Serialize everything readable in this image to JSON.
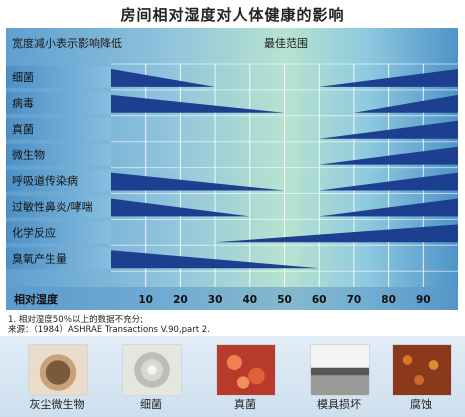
{
  "title": "房间相对湿度对人体健康的影响",
  "header": {
    "left_text": "宽度减小表示影响降低",
    "right_text": "最佳范围"
  },
  "chart_data": {
    "type": "band-chart",
    "x_axis_label": "相对湿度",
    "ticks": [
      10,
      20,
      30,
      40,
      50,
      60,
      70,
      80,
      90
    ],
    "optimal_range": [
      40,
      60
    ],
    "rows": [
      {
        "label": "细菌",
        "left": [
          0,
          30
        ],
        "right": [
          60,
          100
        ]
      },
      {
        "label": "病毒",
        "left": [
          0,
          50
        ],
        "right": [
          70,
          100
        ]
      },
      {
        "label": "真菌",
        "left": null,
        "right": [
          60,
          100
        ]
      },
      {
        "label": "微生物",
        "left": null,
        "right": [
          60,
          100
        ]
      },
      {
        "label": "呼吸道传染病",
        "left": [
          0,
          50
        ],
        "right": [
          60,
          100
        ]
      },
      {
        "label": "过敏性鼻炎/哮喘",
        "left": [
          0,
          40
        ],
        "right": [
          60,
          100
        ]
      },
      {
        "label": "化学反应",
        "left": null,
        "right": [
          30,
          100
        ]
      },
      {
        "label": "臭氧产生量",
        "left": [
          0,
          60
        ],
        "right": null
      }
    ]
  },
  "notes": {
    "line1": "1. 相对湿度50％以上的数据不充分;",
    "line2": "来源：（1984）ASHRAE  Transactions V.90,part 2."
  },
  "photos": [
    {
      "caption": "灰尘微生物"
    },
    {
      "caption": "细菌"
    },
    {
      "caption": "真菌"
    },
    {
      "caption": "模具损坏"
    },
    {
      "caption": "腐蚀"
    }
  ]
}
